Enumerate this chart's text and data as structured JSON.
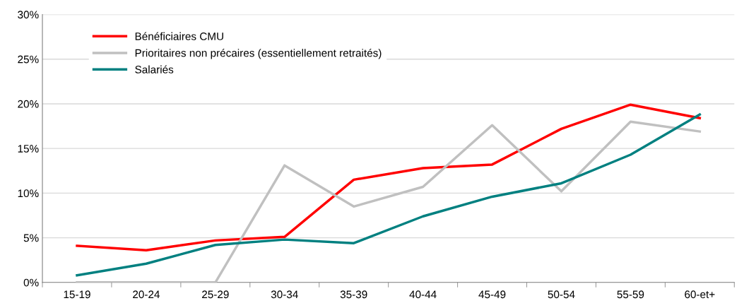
{
  "chart_data": {
    "type": "line",
    "categories": [
      "15-19",
      "20-24",
      "25-29",
      "30-34",
      "35-39",
      "40-44",
      "45-49",
      "50-54",
      "55-59",
      "60-et+"
    ],
    "series": [
      {
        "name": "Bénéficiaires CMU",
        "color": "#ff0000",
        "values": [
          4.1,
          3.6,
          4.7,
          5.1,
          11.5,
          12.8,
          13.2,
          17.2,
          19.9,
          18.4
        ]
      },
      {
        "name": "Prioritaires non précaires (essentiellement retraités)",
        "color": "#c0c0c0",
        "values": [
          0,
          0,
          0,
          13.1,
          8.5,
          10.7,
          17.6,
          10.2,
          18.0,
          16.9
        ]
      },
      {
        "name": "Salariés",
        "color": "#008080",
        "values": [
          0.8,
          2.1,
          4.2,
          4.8,
          4.4,
          7.4,
          9.6,
          11.1,
          14.3,
          18.8
        ]
      }
    ],
    "ylim": [
      0,
      30
    ],
    "yticks": [
      {
        "value": 0,
        "label": "0%"
      },
      {
        "value": 5,
        "label": "5%"
      },
      {
        "value": 10,
        "label": "10%"
      },
      {
        "value": 15,
        "label": "15%"
      },
      {
        "value": 20,
        "label": "20%"
      },
      {
        "value": 25,
        "label": "25%"
      },
      {
        "value": 30,
        "label": "30%"
      }
    ],
    "grid": "y",
    "legend": "top left",
    "marker": "none",
    "line_style": "solid"
  }
}
